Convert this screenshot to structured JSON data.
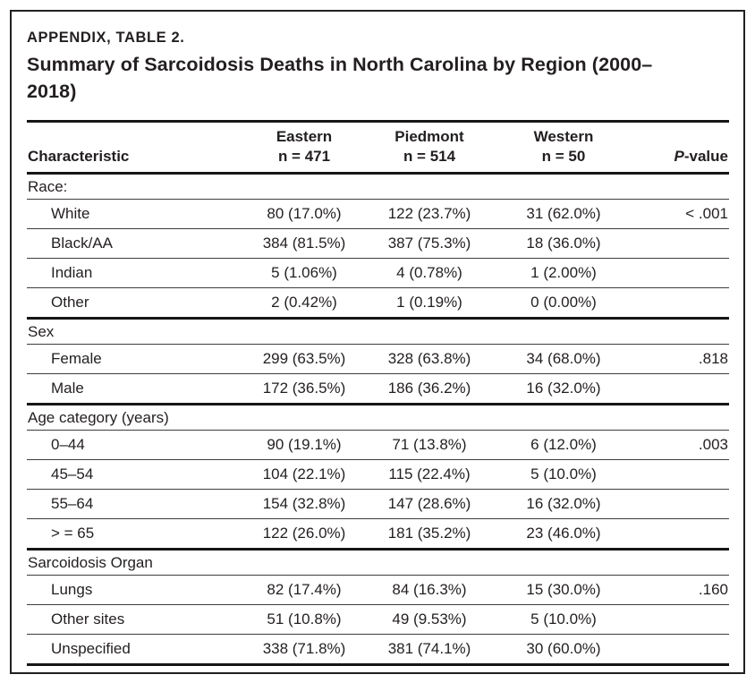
{
  "header_block": {
    "kicker": "APPENDIX, TABLE 2.",
    "title_line1": "Summary of Sarcoidosis Deaths in North Carolina by Region (2000–",
    "title_line2": "2018)"
  },
  "table": {
    "header": {
      "characteristic": "Characteristic",
      "groups": [
        {
          "region": "Eastern",
          "n": "n = 471"
        },
        {
          "region": "Piedmont",
          "n": "n = 514"
        },
        {
          "region": "Western",
          "n": "n = 50"
        }
      ],
      "p_value": {
        "italic": "P",
        "rest": "-value"
      }
    },
    "sections": [
      {
        "label": "Race:",
        "rows": [
          {
            "characteristic": "White",
            "eastern": "80 (17.0%)",
            "piedmont": "122 (23.7%)",
            "western": "31 (62.0%)",
            "p_value": "< .001"
          },
          {
            "characteristic": "Black/AA",
            "eastern": "384 (81.5%)",
            "piedmont": "387 (75.3%)",
            "western": "18 (36.0%)",
            "p_value": ""
          },
          {
            "characteristic": "Indian",
            "eastern": "5 (1.06%)",
            "piedmont": "4 (0.78%)",
            "western": "1 (2.00%)",
            "p_value": ""
          },
          {
            "characteristic": "Other",
            "eastern": "2 (0.42%)",
            "piedmont": "1 (0.19%)",
            "western": "0 (0.00%)",
            "p_value": ""
          }
        ]
      },
      {
        "label": "Sex",
        "rows": [
          {
            "characteristic": "Female",
            "eastern": "299 (63.5%)",
            "piedmont": "328 (63.8%)",
            "western": "34 (68.0%)",
            "p_value": ".818"
          },
          {
            "characteristic": "Male",
            "eastern": "172 (36.5%)",
            "piedmont": "186 (36.2%)",
            "western": "16 (32.0%)",
            "p_value": ""
          }
        ]
      },
      {
        "label": "Age category (years)",
        "rows": [
          {
            "characteristic": "0–44",
            "eastern": "90 (19.1%)",
            "piedmont": "71 (13.8%)",
            "western": "6 (12.0%)",
            "p_value": ".003"
          },
          {
            "characteristic": "45–54",
            "eastern": "104 (22.1%)",
            "piedmont": "115 (22.4%)",
            "western": "5 (10.0%)",
            "p_value": ""
          },
          {
            "characteristic": "55–64",
            "eastern": "154 (32.8%)",
            "piedmont": "147 (28.6%)",
            "western": "16 (32.0%)",
            "p_value": ""
          },
          {
            "characteristic": "> = 65",
            "eastern": "122 (26.0%)",
            "piedmont": "181 (35.2%)",
            "western": "23 (46.0%)",
            "p_value": ""
          }
        ]
      },
      {
        "label": "Sarcoidosis Organ",
        "rows": [
          {
            "characteristic": "Lungs",
            "eastern": "82 (17.4%)",
            "piedmont": "84 (16.3%)",
            "western": "15 (30.0%)",
            "p_value": ".160"
          },
          {
            "characteristic": "Other sites",
            "eastern": "51 (10.8%)",
            "piedmont": "49 (9.53%)",
            "western": "5 (10.0%)",
            "p_value": ""
          },
          {
            "characteristic": "Unspecified",
            "eastern": "338 (71.8%)",
            "piedmont": "381 (74.1%)",
            "western": "30 (60.0%)",
            "p_value": ""
          }
        ]
      }
    ]
  },
  "colors": {
    "text": "#231f20",
    "rule_thick": "#161616",
    "rule_thin": "#3d3d3d",
    "background": "#ffffff"
  }
}
